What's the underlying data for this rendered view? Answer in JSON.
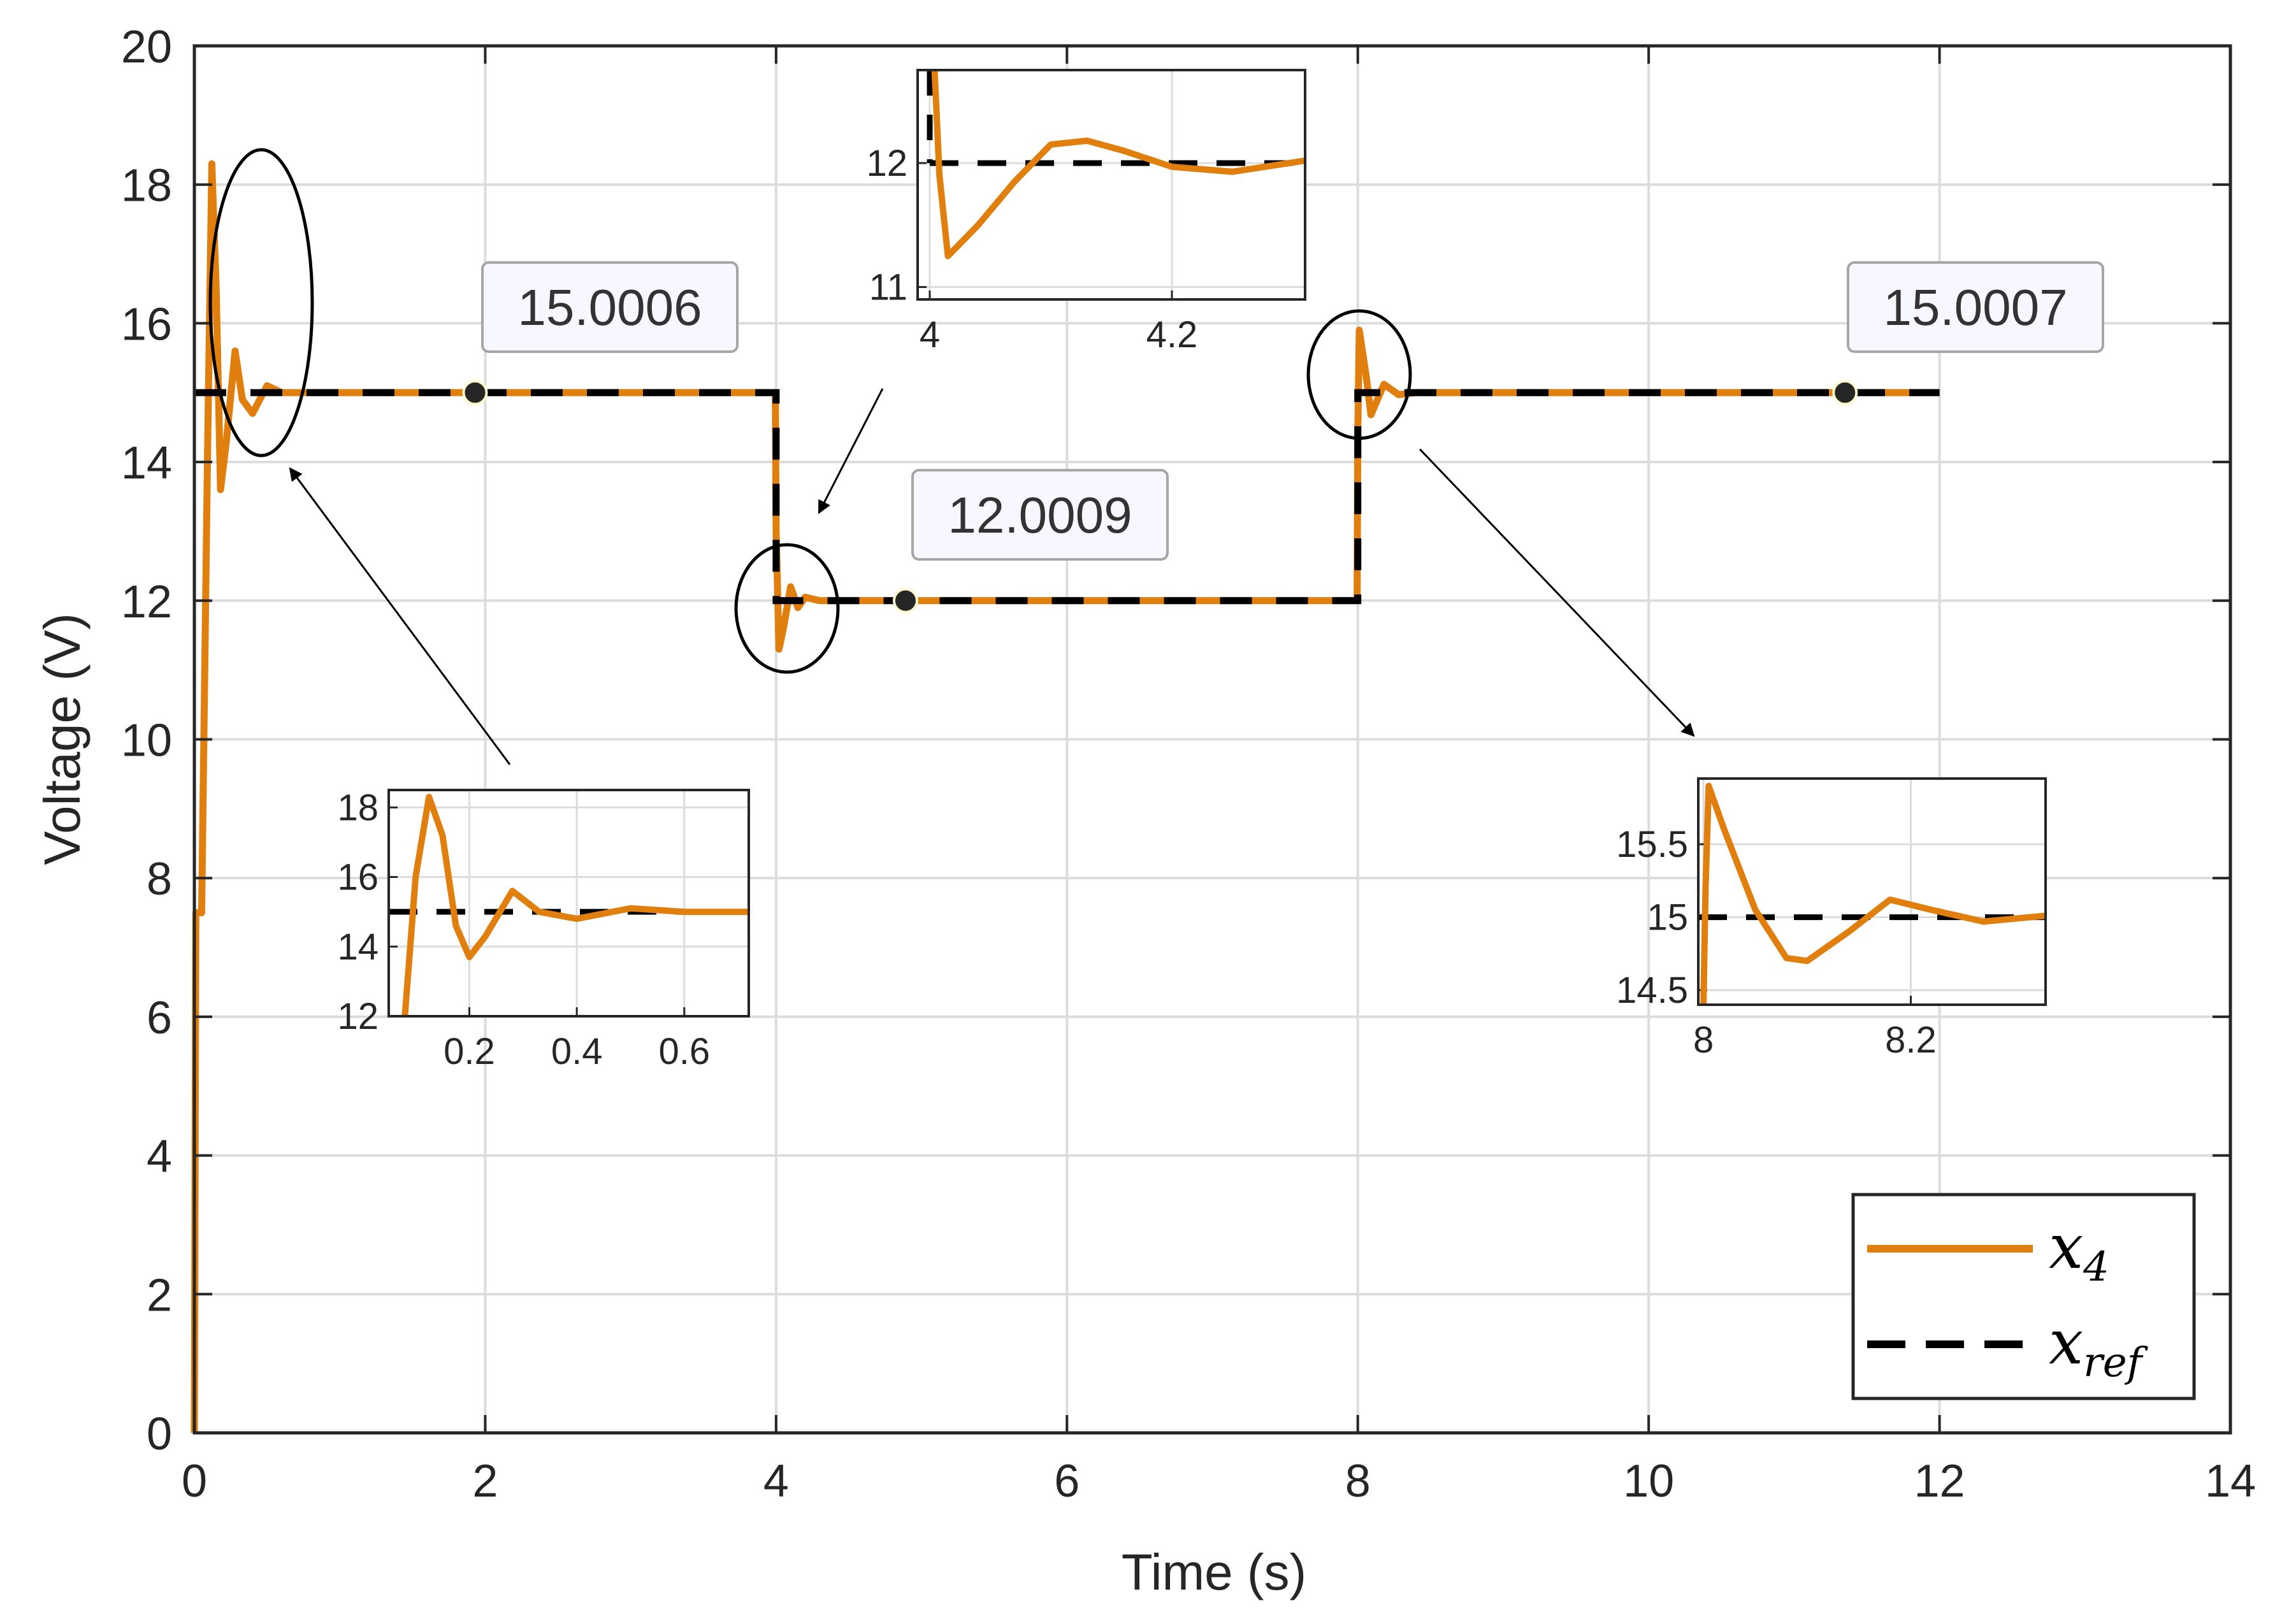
{
  "chart_data": {
    "type": "line",
    "xlabel": "Time (s)",
    "ylabel": "Voltage (V)",
    "xlim": [
      0,
      14
    ],
    "ylim": [
      0,
      20
    ],
    "xticks": [
      "0",
      "2",
      "4",
      "6",
      "8",
      "10",
      "12",
      "14"
    ],
    "yticks": [
      "0",
      "2",
      "4",
      "6",
      "8",
      "10",
      "12",
      "14",
      "16",
      "18",
      "20"
    ],
    "grid": true,
    "legend_position": "bottom-right",
    "series": [
      {
        "name": "x_4",
        "label_main": "x",
        "label_sub": "4",
        "style": "solid",
        "color": "#E07E0E"
      },
      {
        "name": "x_ref",
        "label_main": "x",
        "label_sub": "ref",
        "style": "dashed",
        "color": "#000000"
      }
    ],
    "reference_segments": [
      {
        "t0": 0,
        "t1": 4,
        "value": 15
      },
      {
        "t0": 4,
        "t1": 8,
        "value": 12
      },
      {
        "t0": 8,
        "t1": 12,
        "value": 15
      }
    ],
    "response_keypoints": [
      [
        0,
        0
      ],
      [
        0.01,
        7.5
      ],
      [
        0.05,
        7.5
      ],
      [
        0.09,
        14
      ],
      [
        0.12,
        18.3
      ],
      [
        0.15,
        16.5
      ],
      [
        0.18,
        13.6
      ],
      [
        0.22,
        14.3
      ],
      [
        0.28,
        15.6
      ],
      [
        0.33,
        14.9
      ],
      [
        0.4,
        14.7
      ],
      [
        0.5,
        15.1
      ],
      [
        0.6,
        15.0
      ],
      [
        0.75,
        15.0
      ],
      [
        3.995,
        15.0
      ],
      [
        4.0,
        13.0
      ],
      [
        4.02,
        11.3
      ],
      [
        4.05,
        11.6
      ],
      [
        4.1,
        12.2
      ],
      [
        4.15,
        11.9
      ],
      [
        4.2,
        12.05
      ],
      [
        4.3,
        12.0
      ],
      [
        7.995,
        12.0
      ],
      [
        8.0,
        14.4
      ],
      [
        8.01,
        15.9
      ],
      [
        8.06,
        15.2
      ],
      [
        8.09,
        14.68
      ],
      [
        8.18,
        15.12
      ],
      [
        8.28,
        14.97
      ],
      [
        8.4,
        15.0
      ],
      [
        12.0,
        15.0
      ]
    ],
    "data_tips": [
      {
        "x": 1.93,
        "y": 15.0006,
        "label": "15.0006"
      },
      {
        "x": 4.89,
        "y": 12.0009,
        "label": "12.0009"
      },
      {
        "x": 11.35,
        "y": 15.0007,
        "label": "15.0007"
      }
    ],
    "insets": [
      {
        "name": "inset-startup",
        "xlim": [
          0.05,
          0.72
        ],
        "ylim": [
          12,
          18.5
        ],
        "xticks": [
          "0.2",
          "0.4",
          "0.6"
        ],
        "xtick_values": [
          0.2,
          0.4,
          0.6
        ],
        "yticks": [
          "12",
          "14",
          "16",
          "18"
        ],
        "ytick_values": [
          12,
          14,
          16,
          18
        ],
        "ref_value": 15,
        "response": [
          [
            0.08,
            12
          ],
          [
            0.1,
            16
          ],
          [
            0.125,
            18.3
          ],
          [
            0.15,
            17.2
          ],
          [
            0.175,
            14.6
          ],
          [
            0.2,
            13.7
          ],
          [
            0.23,
            14.3
          ],
          [
            0.28,
            15.6
          ],
          [
            0.33,
            15.0
          ],
          [
            0.4,
            14.8
          ],
          [
            0.5,
            15.1
          ],
          [
            0.6,
            15.0
          ],
          [
            0.72,
            15.0
          ]
        ]
      },
      {
        "name": "inset-step-4s",
        "xlim": [
          3.99,
          4.31
        ],
        "ylim": [
          10.9,
          12.75
        ],
        "xticks": [
          "4",
          "4.2"
        ],
        "xtick_values": [
          4,
          4.2
        ],
        "yticks": [
          "11",
          "12"
        ],
        "ytick_values": [
          11,
          12
        ],
        "ref_value": 12,
        "ref_start": 3.99,
        "response": [
          [
            4.004,
            12.75
          ],
          [
            4.008,
            11.9
          ],
          [
            4.015,
            11.25
          ],
          [
            4.04,
            11.5
          ],
          [
            4.07,
            11.85
          ],
          [
            4.1,
            12.15
          ],
          [
            4.13,
            12.18
          ],
          [
            4.16,
            12.1
          ],
          [
            4.2,
            11.97
          ],
          [
            4.25,
            11.93
          ],
          [
            4.31,
            12.02
          ]
        ]
      },
      {
        "name": "inset-step-8s",
        "xlim": [
          7.995,
          8.33
        ],
        "ylim": [
          14.4,
          15.95
        ],
        "xticks": [
          "8",
          "8.2"
        ],
        "xtick_values": [
          8,
          8.2
        ],
        "yticks": [
          "14.5",
          "15",
          "15.5"
        ],
        "ytick_values": [
          14.5,
          15,
          15.5
        ],
        "ref_value": 15,
        "response": [
          [
            8.0,
            14.4
          ],
          [
            8.002,
            15.2
          ],
          [
            8.005,
            15.9
          ],
          [
            8.02,
            15.6
          ],
          [
            8.05,
            15.05
          ],
          [
            8.08,
            14.72
          ],
          [
            8.1,
            14.7
          ],
          [
            8.14,
            14.9
          ],
          [
            8.18,
            15.12
          ],
          [
            8.22,
            15.05
          ],
          [
            8.27,
            14.97
          ],
          [
            8.33,
            15.01
          ]
        ]
      }
    ]
  }
}
